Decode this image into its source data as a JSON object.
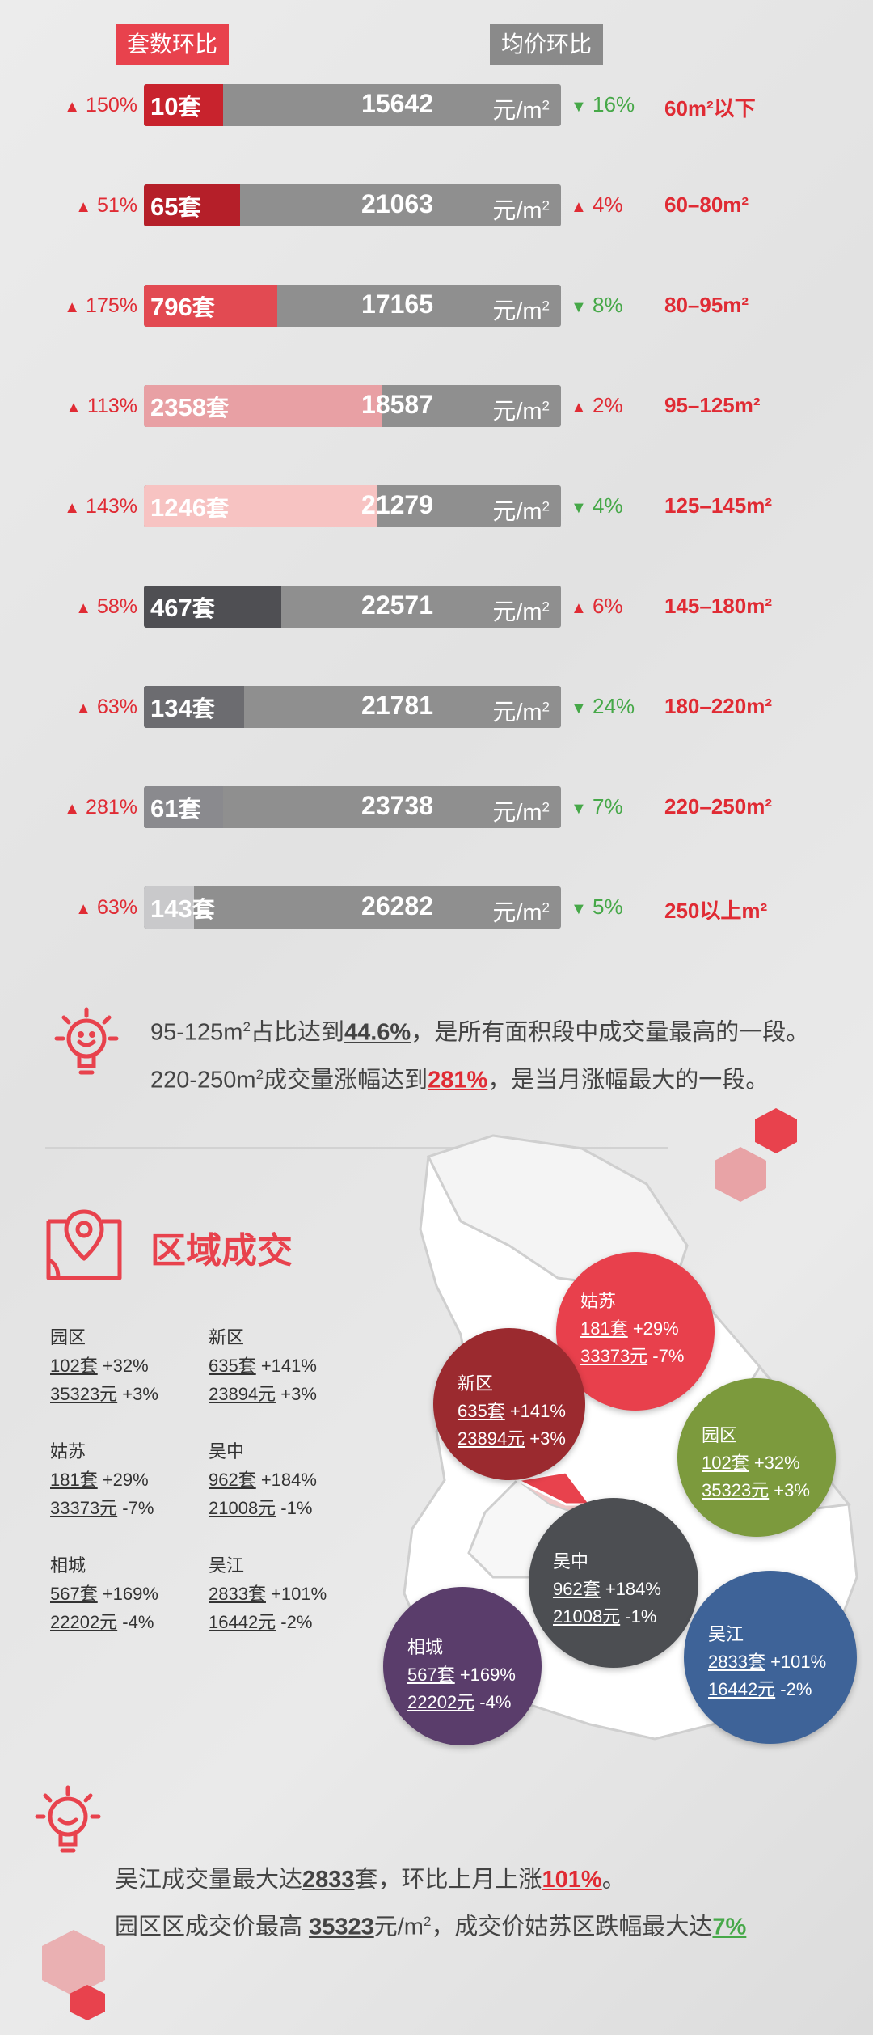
{
  "header": {
    "count_label": "套数环比",
    "price_label": "均价环比"
  },
  "unit": {
    "text": "元/m",
    "sup": "2"
  },
  "rows": [
    {
      "pct": "150%",
      "count": "10",
      "count_unit": "套",
      "price": "15642",
      "delta": "16%",
      "delta_dir": "down",
      "area": "60m²以下",
      "fill_color": "#c8232d",
      "fill_ratio": 0.19
    },
    {
      "pct": "51%",
      "count": "65",
      "count_unit": "套",
      "price": "21063",
      "delta": "4%",
      "delta_dir": "up",
      "area": "60–80m²",
      "fill_color": "#b51f29",
      "fill_ratio": 0.23
    },
    {
      "pct": "175%",
      "count": "796",
      "count_unit": "套",
      "price": "17165",
      "delta": "8%",
      "delta_dir": "down",
      "area": "80–95m²",
      "fill_color": "#e24a52",
      "fill_ratio": 0.32
    },
    {
      "pct": "113%",
      "count": "2358",
      "count_unit": "套",
      "price": "18587",
      "delta": "2%",
      "delta_dir": "up",
      "area": "95–125m²",
      "fill_color": "#e8a0a4",
      "fill_ratio": 0.57
    },
    {
      "pct": "143%",
      "count": "1246",
      "count_unit": "套",
      "price": "21279",
      "delta": "4%",
      "delta_dir": "down",
      "area": "125–145m²",
      "fill_color": "#f7c3c2",
      "fill_ratio": 0.56
    },
    {
      "pct": "58%",
      "count": "467",
      "count_unit": "套",
      "price": "22571",
      "delta": "6%",
      "delta_dir": "up",
      "area": "145–180m²",
      "fill_color": "#4f4f53",
      "fill_ratio": 0.33
    },
    {
      "pct": "63%",
      "count": "134",
      "count_unit": "套",
      "price": "21781",
      "delta": "24%",
      "delta_dir": "down",
      "area": "180–220m²",
      "fill_color": "#6c6c70",
      "fill_ratio": 0.24
    },
    {
      "pct": "281%",
      "count": "61",
      "count_unit": "套",
      "price": "23738",
      "delta": "7%",
      "delta_dir": "down",
      "area": "220–250m²",
      "fill_color": "#8a8a8e",
      "fill_ratio": 0.19
    },
    {
      "pct": "63%",
      "count": "143",
      "count_unit": "套",
      "price": "26282",
      "delta": "5%",
      "delta_dir": "down",
      "area": "250以上m²",
      "fill_color": "#c9c9cb",
      "fill_ratio": 0.12
    }
  ],
  "tip1": {
    "line1_a": "95-125m",
    "line1_sup": "2",
    "line1_b": "占比达到",
    "line1_hl": "44.6%",
    "line1_c": "，是所有面积段中成交量最高的一段。",
    "line2_a": "220-250m",
    "line2_sup": "2",
    "line2_b": "成交量涨幅达到",
    "line2_hl": "281%",
    "line2_c": "，是当月涨幅最大的一段。"
  },
  "section_title": "区域成交",
  "stats": [
    {
      "name": "园区",
      "count": "102套",
      "count_chg": " +32%",
      "price": "35323元",
      "price_chg": " +3%"
    },
    {
      "name": "新区",
      "count": "635套",
      "count_chg": " +141%",
      "price": "23894元",
      "price_chg": " +3%"
    },
    {
      "name": "姑苏",
      "count": "181套",
      "count_chg": " +29%",
      "price": "33373元",
      "price_chg": " -7%"
    },
    {
      "name": "吴中",
      "count": "962套",
      "count_chg": " +184%",
      "price": "21008元",
      "price_chg": " -1%"
    },
    {
      "name": "相城",
      "count": "567套",
      "count_chg": " +169%",
      "price": "22202元",
      "price_chg": " -4%"
    },
    {
      "name": "吴江",
      "count": "2833套",
      "count_chg": " +101%",
      "price": "16442元",
      "price_chg": " -2%"
    }
  ],
  "bubbles": [
    {
      "name": "姑苏",
      "count": "181套",
      "count_chg": " +29%",
      "price": "33373元",
      "price_chg": " -7%",
      "color": "#e8404c"
    },
    {
      "name": "新区",
      "count": "635套",
      "count_chg": " +141%",
      "price": "23894元",
      "price_chg": " +3%",
      "color": "#9b2a2f"
    },
    {
      "name": "园区",
      "count": "102套",
      "count_chg": " +32%",
      "price": "35323元",
      "price_chg": " +3%",
      "color": "#7c9a3d"
    },
    {
      "name": "吴中",
      "count": "962套",
      "count_chg": " +184%",
      "price": "21008元",
      "price_chg": " -1%",
      "color": "#4c4e52"
    },
    {
      "name": "吴江",
      "count": "2833套",
      "count_chg": " +101%",
      "price": "16442元",
      "price_chg": " -2%",
      "color": "#3e6398"
    },
    {
      "name": "相城",
      "count": "567套",
      "count_chg": " +169%",
      "price": "22202元",
      "price_chg": " -4%",
      "color": "#5a3d6b"
    }
  ],
  "tip2": {
    "line1_a": "吴江成交量最大达",
    "line1_hl": "2833",
    "line1_b": "套，环比上月上涨",
    "line1_hl2": "101%",
    "line1_c": "。",
    "line2_a": "园区区成交价最高 ",
    "line2_hl": "35323",
    "line2_b": "元/m",
    "line2_sup": "2",
    "line2_c": "，成交价姑苏区跌幅最大达",
    "line2_hl2": "7%"
  },
  "arrows": {
    "up": "▲",
    "down": "▼"
  },
  "colors": {
    "accent": "#e8424d",
    "up": "#e02b34",
    "down": "#46a848"
  }
}
